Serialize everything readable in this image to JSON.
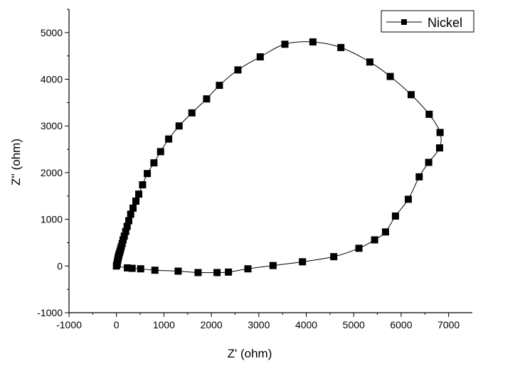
{
  "chart_data": {
    "type": "scatter",
    "title": "",
    "xlabel": "Z' (ohm)",
    "ylabel": "Z'' (ohm)",
    "xlim": [
      -1000,
      7500
    ],
    "ylim": [
      -1000,
      5500
    ],
    "x_ticks": [
      -1000,
      0,
      1000,
      2000,
      3000,
      4000,
      5000,
      6000,
      7000
    ],
    "y_ticks": [
      -1000,
      0,
      1000,
      2000,
      3000,
      4000,
      5000
    ],
    "grid": false,
    "legend_position": "top-right",
    "series": [
      {
        "name": "Nickel",
        "color": "#000000",
        "marker": "square",
        "line": true,
        "x": [
          0,
          10,
          15,
          20,
          28,
          35,
          45,
          55,
          70,
          85,
          100,
          120,
          140,
          165,
          195,
          225,
          260,
          300,
          350,
          410,
          470,
          550,
          650,
          790,
          930,
          1100,
          1320,
          1590,
          1900,
          2170,
          2560,
          3030,
          3550,
          4140,
          4730,
          5340,
          5770,
          6210,
          6590,
          6820,
          6810,
          6580,
          6380,
          6150,
          5880,
          5670,
          5440,
          5110,
          4580,
          3920,
          3300,
          2770,
          2360,
          2120,
          1720,
          1300,
          810,
          510,
          330,
          230
        ],
        "y": [
          0,
          30,
          60,
          90,
          130,
          170,
          210,
          250,
          300,
          350,
          410,
          480,
          560,
          640,
          740,
          850,
          970,
          1110,
          1240,
          1390,
          1540,
          1740,
          1980,
          2210,
          2450,
          2720,
          3000,
          3280,
          3580,
          3870,
          4200,
          4480,
          4750,
          4800,
          4680,
          4370,
          4060,
          3670,
          3250,
          2860,
          2530,
          2220,
          1910,
          1430,
          1070,
          730,
          560,
          380,
          200,
          90,
          10,
          -60,
          -130,
          -140,
          -140,
          -110,
          -90,
          -60,
          -50,
          -40
        ]
      }
    ]
  }
}
